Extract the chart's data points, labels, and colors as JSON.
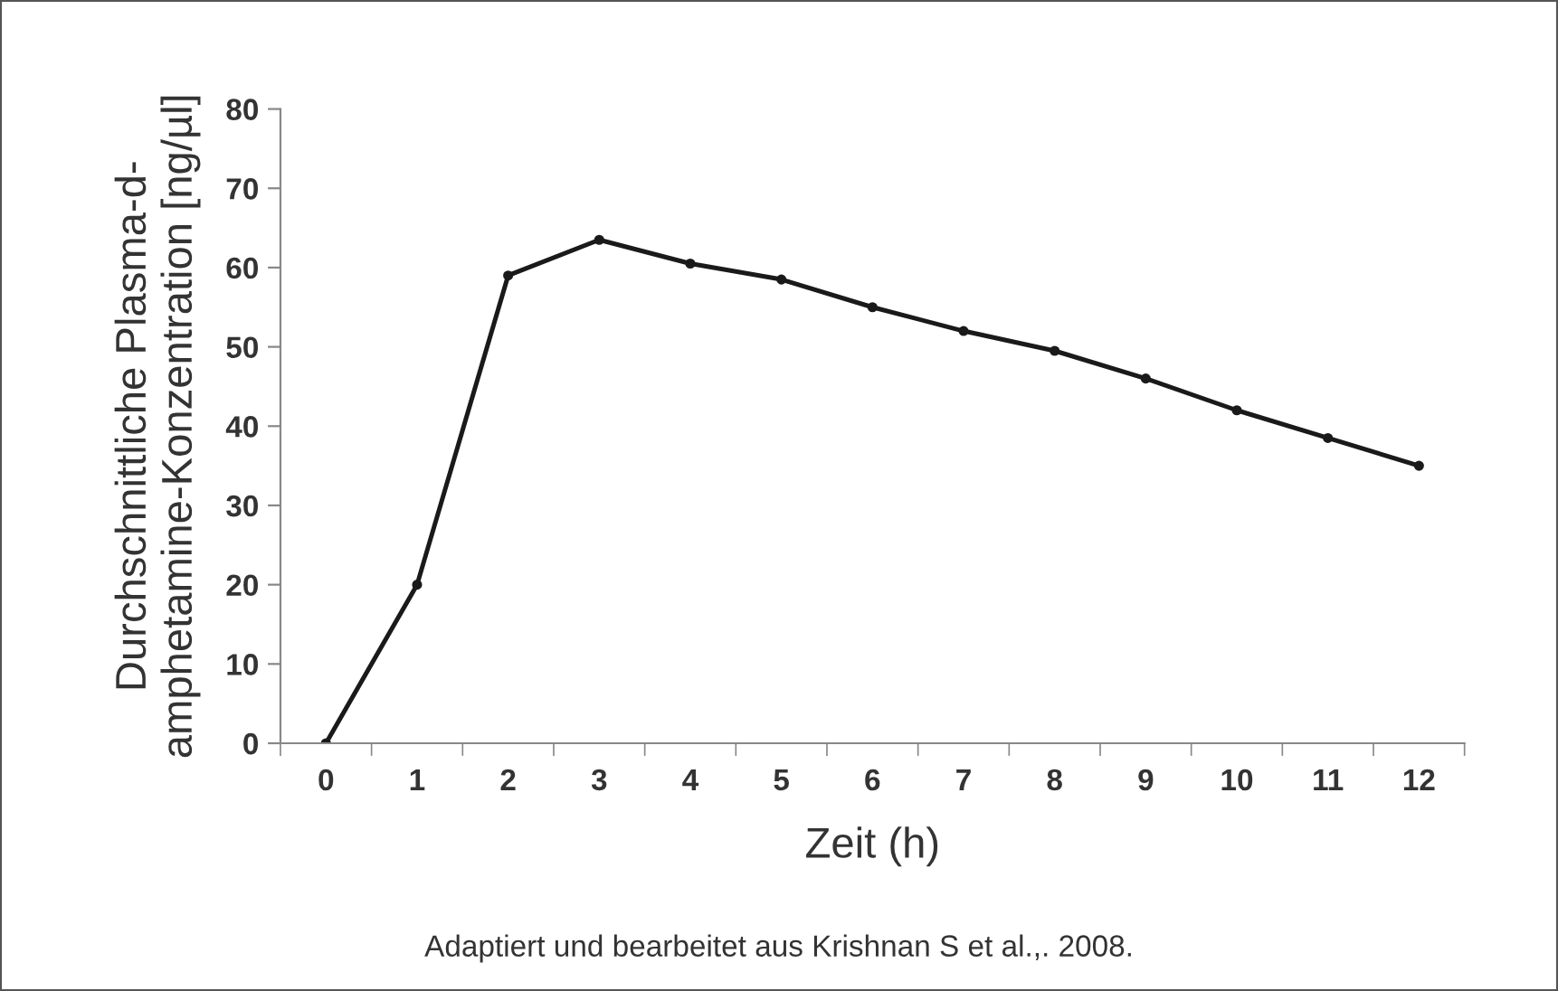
{
  "chart_data": {
    "type": "line",
    "xlabel": "Zeit (h)",
    "ylabel": "Durchschnittliche Plasma-d-\namphetamine-Konzentration [ng/µl]",
    "categories": [
      "0",
      "1",
      "2",
      "3",
      "4",
      "5",
      "6",
      "7",
      "8",
      "9",
      "10",
      "11",
      "12"
    ],
    "series": [
      {
        "color": "#1a1a1a",
        "values": [
          0,
          20,
          59,
          63.5,
          60.5,
          58.5,
          55,
          52,
          49.5,
          46,
          42,
          38.5,
          35
        ]
      }
    ],
    "ylim": [
      0,
      80
    ],
    "yticks": [
      0,
      10,
      20,
      30,
      40,
      50,
      60,
      70,
      80
    ],
    "grid": false,
    "legend": false,
    "marker": "circle",
    "line_style": "solid",
    "annotations": [
      "Adaptiert und bearbeitet aus Krishnan S et al.,. 2008."
    ]
  }
}
